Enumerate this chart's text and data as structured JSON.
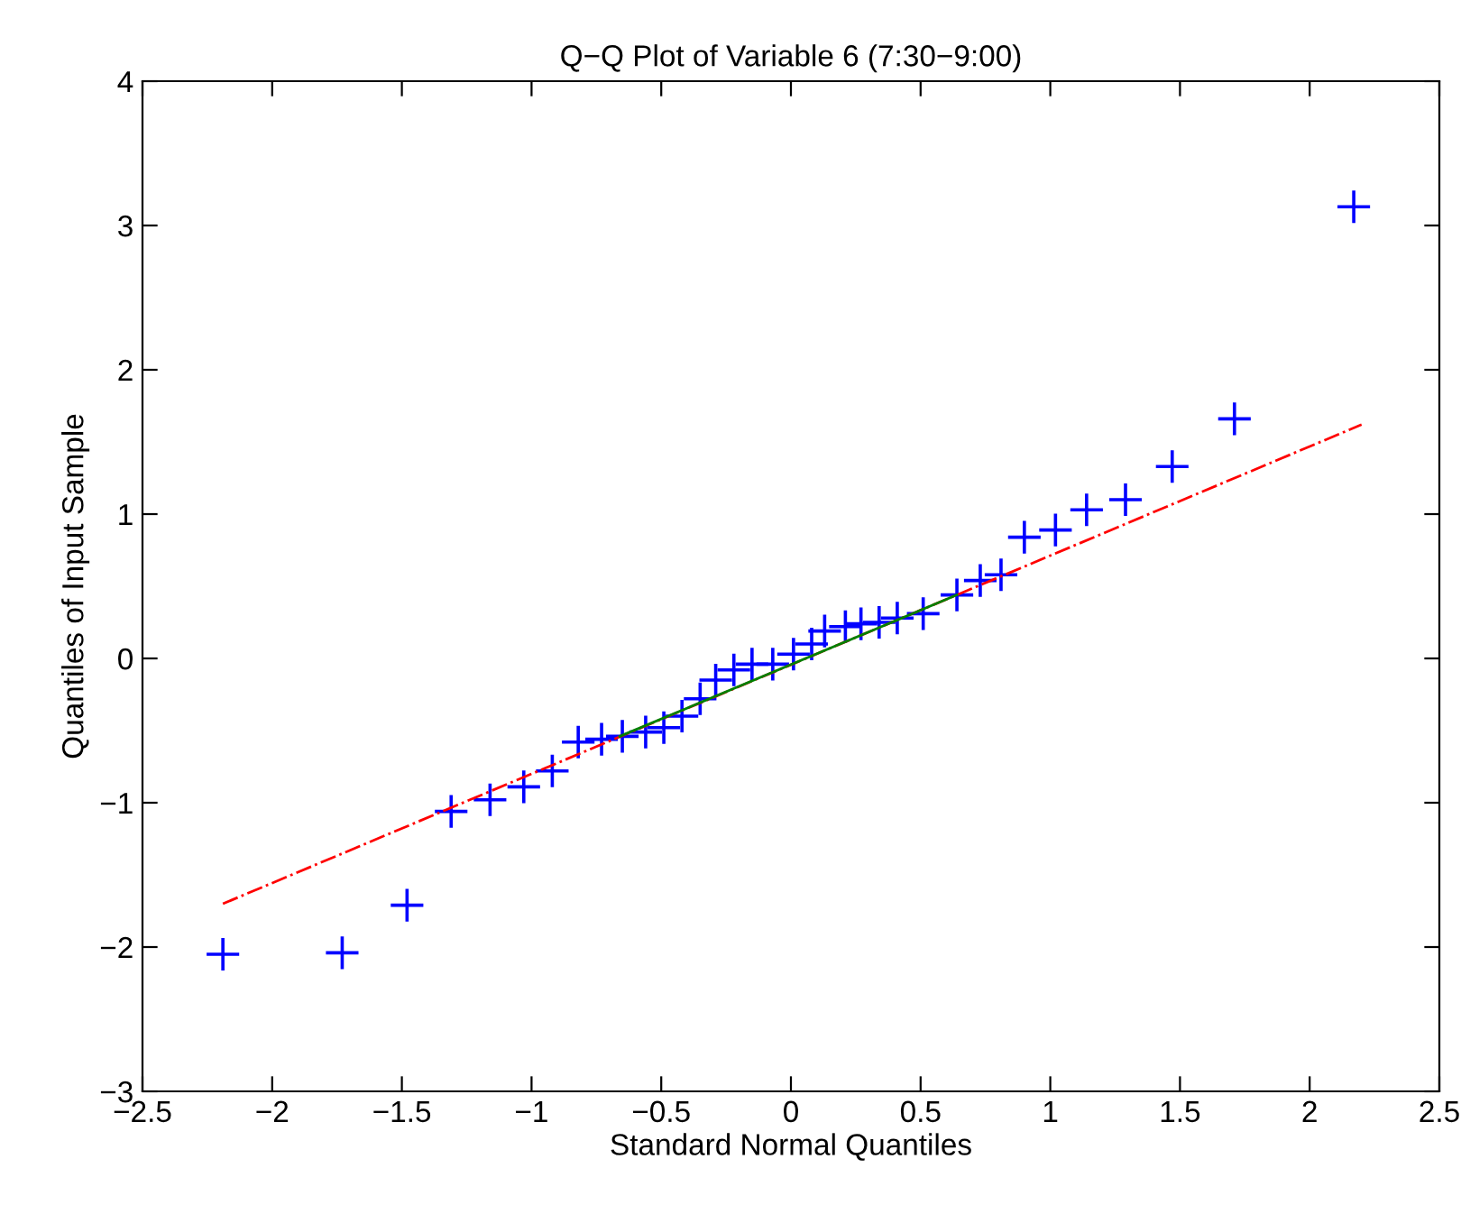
{
  "chart_data": {
    "type": "scatter",
    "title": "Q−Q Plot of Variable 6 (7:30−9:00)",
    "xlabel": "Standard Normal Quantiles",
    "ylabel": "Quantiles of Input Sample",
    "xlim": [
      -2.5,
      2.5
    ],
    "ylim": [
      -3,
      4
    ],
    "xticks": [
      -2.5,
      -2,
      -1.5,
      -1,
      -0.5,
      0,
      0.5,
      1,
      1.5,
      2,
      2.5
    ],
    "yticks": [
      -3,
      -2,
      -1,
      0,
      1,
      2,
      3,
      4
    ],
    "grid": false,
    "legend": false,
    "series": [
      {
        "marker": "cross",
        "color": "#0000ff",
        "x": [
          -2.19,
          -1.73,
          -1.48,
          -1.31,
          -1.16,
          -1.03,
          -0.92,
          -0.82,
          -0.73,
          -0.65,
          -0.56,
          -0.49,
          -0.42,
          -0.35,
          -0.29,
          -0.22,
          -0.15,
          -0.07,
          0.01,
          0.08,
          0.13,
          0.21,
          0.27,
          0.34,
          0.41,
          0.51,
          0.64,
          0.73,
          0.81,
          0.9,
          1.02,
          1.14,
          1.29,
          1.47,
          1.71,
          2.17
        ],
        "values": [
          -2.05,
          -2.04,
          -1.71,
          -1.06,
          -0.98,
          -0.89,
          -0.78,
          -0.58,
          -0.56,
          -0.54,
          -0.51,
          -0.48,
          -0.4,
          -0.28,
          -0.15,
          -0.08,
          -0.04,
          -0.04,
          0.03,
          0.1,
          0.19,
          0.22,
          0.24,
          0.25,
          0.28,
          0.31,
          0.44,
          0.54,
          0.58,
          0.84,
          0.89,
          1.03,
          1.1,
          1.33,
          1.66,
          3.13
        ]
      },
      {
        "type": "line",
        "marker": "none",
        "line_style": "dashdot",
        "color": "#ff0000",
        "x": [
          -2.19,
          2.2
        ],
        "values": [
          -1.7,
          1.62
        ]
      },
      {
        "type": "line",
        "marker": "none",
        "line_style": "solid",
        "color": "#008000",
        "x": [
          -0.66,
          0.64
        ],
        "values": [
          -0.54,
          0.44
        ]
      }
    ]
  }
}
